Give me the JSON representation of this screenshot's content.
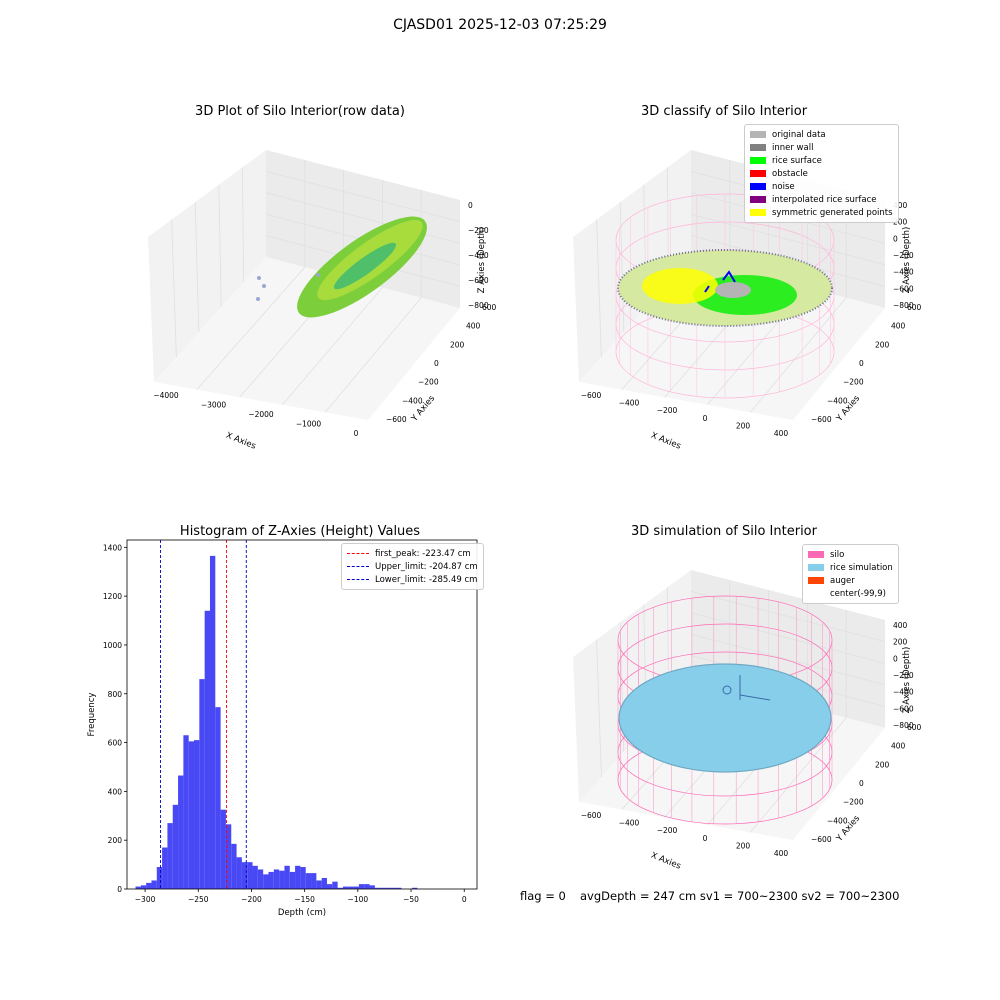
{
  "suptitle": "CJASD01 2025-12-03 07:25:29",
  "chart_data": [
    {
      "type": "scatter3d",
      "title": "3D Plot of Silo Interior(row data)",
      "xlabel": "X Axies",
      "ylabel": "Y Axies",
      "zlabel": "Z Axies (Depth)",
      "xticks": [
        "−4000",
        "−3000",
        "−2000",
        "−1000",
        "0"
      ],
      "yticks": [
        "−600",
        "−400",
        "−200",
        "0",
        "200",
        "400",
        "600"
      ],
      "zticks": [
        "0",
        "−200",
        "−400",
        "−600",
        "−800"
      ],
      "point_color": "#7ccf3a"
    },
    {
      "type": "scatter3d",
      "title": "3D classify of Silo Interior",
      "xlabel": "X Axies",
      "ylabel": "Y Axies",
      "zlabel": "Z Axies (Depth)",
      "xticks": [
        "−600",
        "−400",
        "−200",
        "0",
        "200",
        "400"
      ],
      "yticks": [
        "−600",
        "−400",
        "−200",
        "0",
        "200",
        "400",
        "600"
      ],
      "zticks": [
        "400",
        "200",
        "0",
        "−200",
        "−400",
        "−600",
        "−800"
      ],
      "legend": [
        {
          "label": "original data",
          "color": "#b4b4b4"
        },
        {
          "label": "inner wall",
          "color": "#808080"
        },
        {
          "label": "rice surface",
          "color": "#00ff00"
        },
        {
          "label": "obstacle",
          "color": "#ff0000"
        },
        {
          "label": "noise",
          "color": "#0000ff"
        },
        {
          "label": "interpolated rice surface",
          "color": "#800080"
        },
        {
          "label": "symmetric generated points",
          "color": "#ffff00"
        }
      ]
    },
    {
      "type": "bar",
      "title": "Histogram of Z-Axies (Height) Values",
      "xlabel": "Depth (cm)",
      "ylabel": "Frequency",
      "xlim": [
        -317,
        12
      ],
      "ylim": [
        0,
        1430
      ],
      "xticks": [
        -300,
        -250,
        -200,
        -150,
        -100,
        -50,
        0
      ],
      "yticks": [
        0,
        200,
        400,
        600,
        800,
        1000,
        1200,
        1400
      ],
      "bar_color": "#4848f5",
      "bin_start": -309,
      "bin_width": 5,
      "values": [
        10,
        15,
        25,
        35,
        90,
        170,
        270,
        345,
        465,
        630,
        605,
        610,
        860,
        1140,
        1365,
        745,
        325,
        265,
        185,
        130,
        110,
        110,
        95,
        80,
        60,
        70,
        80,
        75,
        95,
        70,
        95,
        90,
        65,
        65,
        35,
        45,
        20,
        30,
        5,
        10,
        10,
        10,
        20,
        20,
        15,
        5,
        5,
        5,
        5,
        5,
        0,
        0,
        5
      ],
      "lines": [
        {
          "label": "first_peak: -223.47 cm",
          "x": -223.47,
          "color": "#ff0000"
        },
        {
          "label": "Upper_limit: -204.87 cm",
          "x": -204.87,
          "color": "#0000cc"
        },
        {
          "label": "Lower_limit: -285.49 cm",
          "x": -285.49,
          "color": "#0000cc"
        }
      ]
    },
    {
      "type": "surface3d",
      "title": "3D simulation of Silo Interior",
      "xlabel": "X Axies",
      "ylabel": "Y Axies",
      "zlabel": "Z Axies (Depth)",
      "xticks": [
        "−600",
        "−400",
        "−200",
        "0",
        "200",
        "400"
      ],
      "yticks": [
        "−600",
        "−400",
        "−200",
        "0",
        "200",
        "400",
        "600"
      ],
      "zticks": [
        "400",
        "200",
        "0",
        "−200",
        "−400",
        "−600",
        "−800"
      ],
      "legend": [
        {
          "label": "silo",
          "color": "#ff69b4"
        },
        {
          "label": "rice simulation",
          "color": "#87ceeb"
        },
        {
          "label": "auger",
          "color": "#ff4500"
        },
        {
          "label": "center(-99,9)",
          "color": ""
        }
      ]
    }
  ],
  "footer": {
    "flag": "flag = 0",
    "stats": "avgDepth = 247 cm  sv1 = 700~2300  sv2 = 700~2300"
  }
}
